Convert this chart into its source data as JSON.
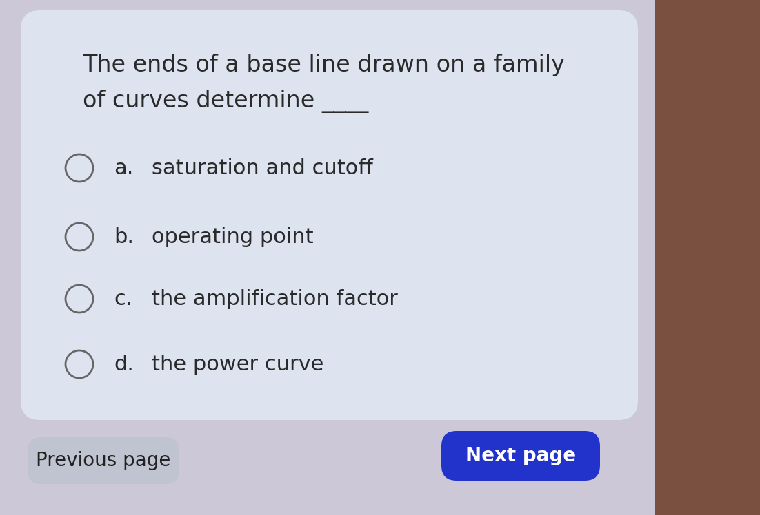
{
  "bg_outer": "#ccc8d8",
  "bg_right_color": "#7a5040",
  "card_bg": "#dde4f0",
  "question_line1": "The ends of a base line drawn on a family",
  "question_line2": "of curves determine ——",
  "question_fontsize": 24,
  "options": [
    {
      "label": "a.",
      "text": "saturation and cutoff"
    },
    {
      "label": "b.",
      "text": "operating point"
    },
    {
      "label": "c.",
      "text": "the amplification factor"
    },
    {
      "label": "d.",
      "text": "the power curve"
    }
  ],
  "option_fontsize": 22,
  "circle_color": "#666666",
  "circle_lw": 2.0,
  "text_color": "#2a2a2a",
  "prev_btn_text": "Previous page",
  "prev_btn_color": "#c0c4d0",
  "prev_btn_text_color": "#222222",
  "next_btn_text": "Next page",
  "next_btn_color": "#2233cc",
  "next_btn_text_color": "#ffffff",
  "btn_fontsize": 20
}
